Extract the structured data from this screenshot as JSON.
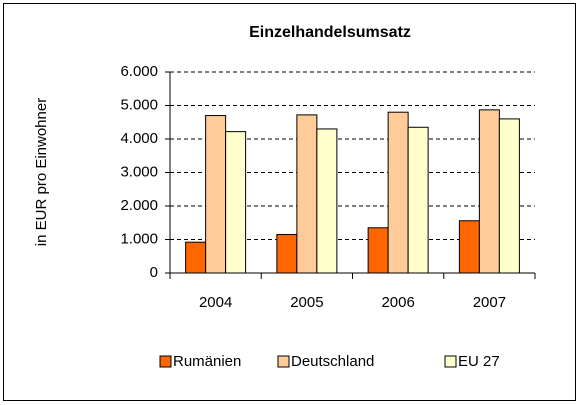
{
  "chart_data": {
    "type": "bar",
    "title": "Einzelhandelsumsatz",
    "y_label": "in EUR pro Einwohner",
    "categories": [
      "2004",
      "2005",
      "2006",
      "2007"
    ],
    "series": [
      {
        "name": "Rumänien",
        "color": "#ff6600",
        "values": [
          920,
          1150,
          1350,
          1560
        ]
      },
      {
        "name": "Deutschland",
        "color": "#ffcc99",
        "values": [
          4700,
          4720,
          4800,
          4870
        ]
      },
      {
        "name": "EU 27",
        "color": "#ffffcc",
        "values": [
          4220,
          4300,
          4350,
          4600
        ]
      }
    ],
    "ylim": [
      0,
      6000
    ],
    "yticks": [
      0,
      {
        "value": 1000,
        "label": "1.000"
      },
      {
        "value": 2000,
        "label": "2.000"
      },
      {
        "value": 3000,
        "label": "3.000"
      },
      {
        "value": 4000,
        "label": "4.000"
      },
      {
        "value": 5000,
        "label": "5.000"
      },
      {
        "value": 6000,
        "label": "6.000"
      }
    ],
    "grid": true,
    "legend": "bottom"
  }
}
